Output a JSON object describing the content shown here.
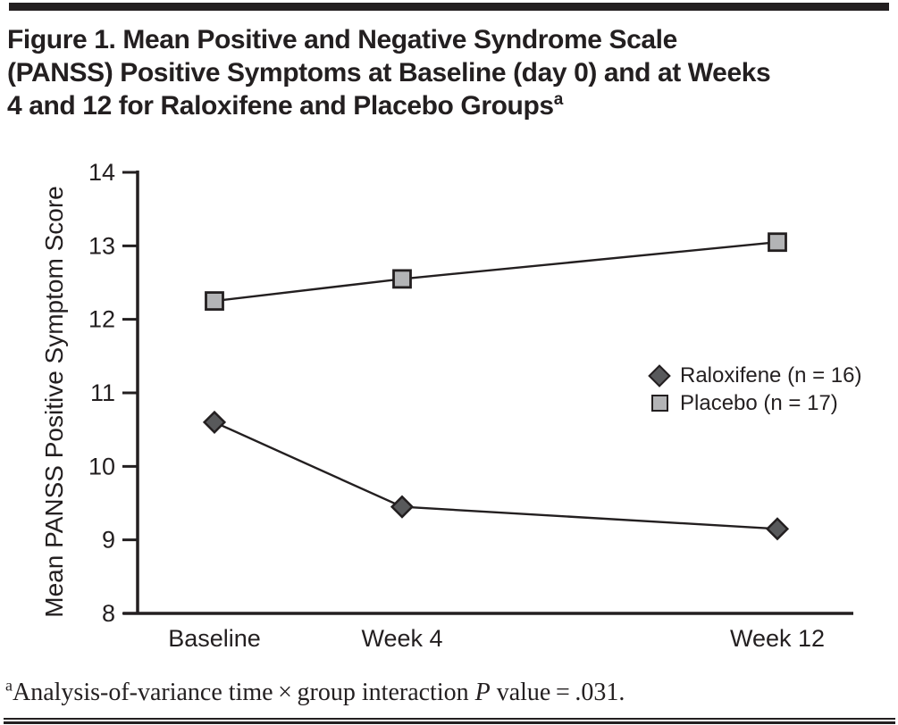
{
  "header": {
    "title_lines": [
      "Figure 1. Mean Positive and Negative Syndrome Scale",
      "(PANSS) Positive Symptoms at Baseline (day 0) and at Weeks",
      "4 and 12 for Raloxifene and Placebo Groups"
    ],
    "title_superscript": "a",
    "top_bar_color": "#231f20"
  },
  "chart_data": {
    "type": "line",
    "title": "",
    "xlabel": "",
    "ylabel": "Mean PANSS Positive Symptom Score",
    "categories": [
      "Baseline",
      "Week 4",
      "Week 12"
    ],
    "x_weeks": [
      0,
      4,
      12
    ],
    "ylim": [
      8,
      14
    ],
    "yticks": [
      8,
      9,
      10,
      11,
      12,
      13,
      14
    ],
    "grid": false,
    "legend_position": "middle-right",
    "axis_color": "#231f20",
    "series": [
      {
        "name": "Raloxifene (n = 16)",
        "marker": "diamond",
        "color": "#58595b",
        "values": [
          10.6,
          9.45,
          9.15
        ]
      },
      {
        "name": "Placebo (n = 17)",
        "marker": "square",
        "color": "#b3b4b6",
        "values": [
          12.25,
          12.55,
          13.05
        ]
      }
    ]
  },
  "footnote": {
    "marker": "a",
    "text_before_p": "Analysis-of-variance time × group interaction ",
    "p_symbol": "P",
    "text_after_p": " value = .031."
  }
}
